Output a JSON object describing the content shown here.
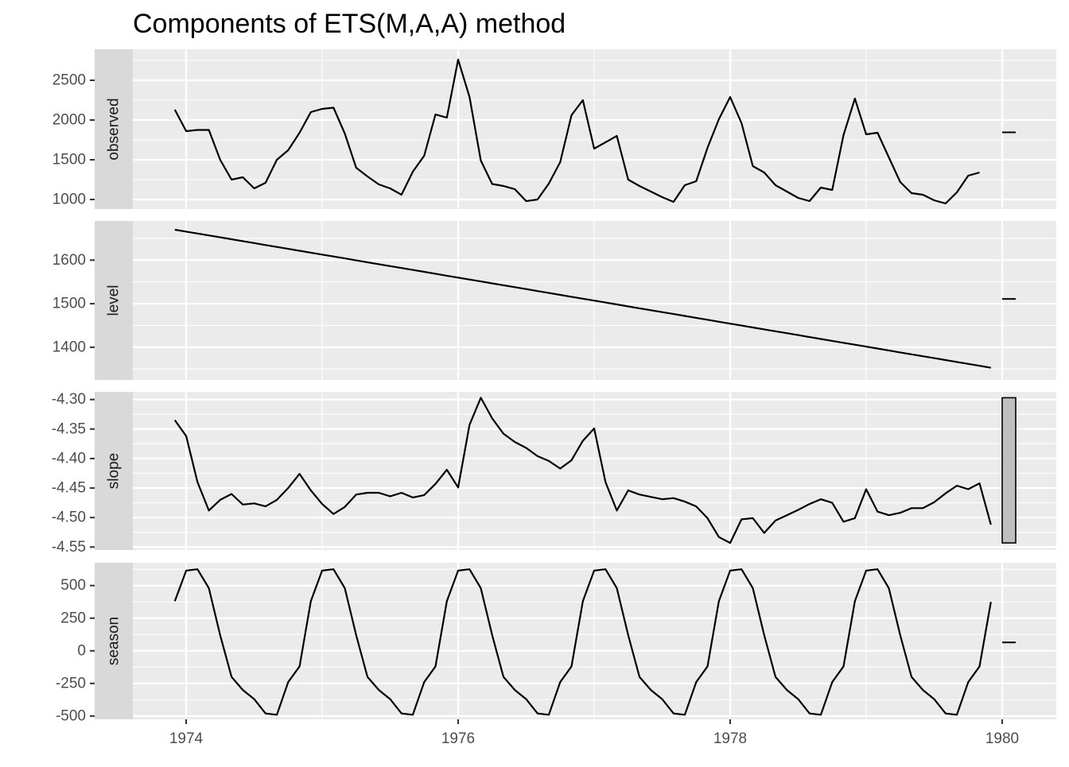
{
  "title": "Components of ETS(M,A,A) method",
  "colors": {
    "panel_background": "#ebebeb",
    "strip_background": "#d9d9d9",
    "grid": "#ffffff",
    "line": "#000000",
    "range_bar_fill": "#bebebe"
  },
  "chart_data": {
    "type": "line",
    "title": "Components of ETS(M,A,A) method",
    "xlabel": "",
    "ylabel": "",
    "x_start": 1973.917,
    "x_step": 0.08333,
    "xlim": [
      1973.3,
      1980.45
    ],
    "x_ticks": [
      1974,
      1976,
      1978,
      1980
    ],
    "x_tick_labels": [
      "1974",
      "1976",
      "1978",
      "1980"
    ],
    "grid": true,
    "facets": [
      {
        "name": "observed",
        "ylim": [
          880,
          2890
        ],
        "y_ticks": [
          1000,
          1500,
          2000,
          2500
        ],
        "y_tick_labels": [
          "1000",
          "1500",
          "2000",
          "2500"
        ],
        "range_bar": [
          1840,
          1850
        ],
        "values": [
          2130,
          1860,
          1875,
          1875,
          1500,
          1250,
          1280,
          1140,
          1210,
          1500,
          1620,
          1840,
          2100,
          2140,
          2155,
          1830,
          1400,
          1290,
          1190,
          1140,
          1060,
          1350,
          1550,
          2070,
          2030,
          2760,
          2290,
          1490,
          1195,
          1170,
          1130,
          980,
          1000,
          1200,
          1470,
          2060,
          2250,
          1640,
          1720,
          1800,
          1250,
          1170,
          1100,
          1030,
          970,
          1180,
          1230,
          1650,
          2010,
          2290,
          1960,
          1420,
          1340,
          1180,
          1100,
          1020,
          980,
          1150,
          1120,
          1810,
          2270,
          1820,
          1840,
          1530,
          1220,
          1080,
          1060,
          990,
          950,
          1090,
          1300,
          1340
        ]
      },
      {
        "name": "level",
        "ylim": [
          1325,
          1690
        ],
        "y_ticks": [
          1400,
          1500,
          1600
        ],
        "y_tick_labels": [
          "1400",
          "1500",
          "1600"
        ],
        "range_bar": [
          1510,
          1512
        ],
        "values_linear": {
          "start": 1670,
          "end": 1353
        }
      },
      {
        "name": "slope",
        "ylim": [
          -4.555,
          -4.287
        ],
        "y_ticks": [
          -4.55,
          -4.5,
          -4.45,
          -4.4,
          -4.35,
          -4.3
        ],
        "y_tick_labels": [
          "-4.55",
          "-4.50",
          "-4.45",
          "-4.40",
          "-4.35",
          "-4.30"
        ],
        "range_bar": [
          -4.543,
          -4.297
        ],
        "values": [
          -4.335,
          -4.362,
          -4.44,
          -4.488,
          -4.47,
          -4.46,
          -4.478,
          -4.476,
          -4.481,
          -4.47,
          -4.45,
          -4.426,
          -4.454,
          -4.477,
          -4.494,
          -4.482,
          -4.461,
          -4.458,
          -4.458,
          -4.464,
          -4.458,
          -4.466,
          -4.462,
          -4.443,
          -4.419,
          -4.449,
          -4.343,
          -4.297,
          -4.332,
          -4.358,
          -4.372,
          -4.382,
          -4.396,
          -4.404,
          -4.417,
          -4.403,
          -4.37,
          -4.349,
          -4.44,
          -4.488,
          -4.454,
          -4.461,
          -4.465,
          -4.469,
          -4.467,
          -4.473,
          -4.481,
          -4.501,
          -4.533,
          -4.543,
          -4.503,
          -4.501,
          -4.526,
          -4.505,
          -4.496,
          -4.487,
          -4.477,
          -4.469,
          -4.475,
          -4.507,
          -4.501,
          -4.452,
          -4.49,
          -4.496,
          -4.492,
          -4.484,
          -4.484,
          -4.474,
          -4.459,
          -4.446,
          -4.452,
          -4.442,
          -4.512
        ]
      },
      {
        "name": "season",
        "ylim": [
          -525,
          675
        ],
        "y_ticks": [
          -500,
          -250,
          0,
          250,
          500
        ],
        "y_tick_labels": [
          "-500",
          "-250",
          "0",
          "250",
          "500"
        ],
        "range_bar": [
          63,
          65
        ],
        "seasonal_pattern": [
          380,
          615,
          625,
          480,
          120,
          -200,
          -300,
          -370,
          -480,
          -490,
          -240,
          -120
        ],
        "season_repeats": 6,
        "season_last": 375
      }
    ]
  }
}
